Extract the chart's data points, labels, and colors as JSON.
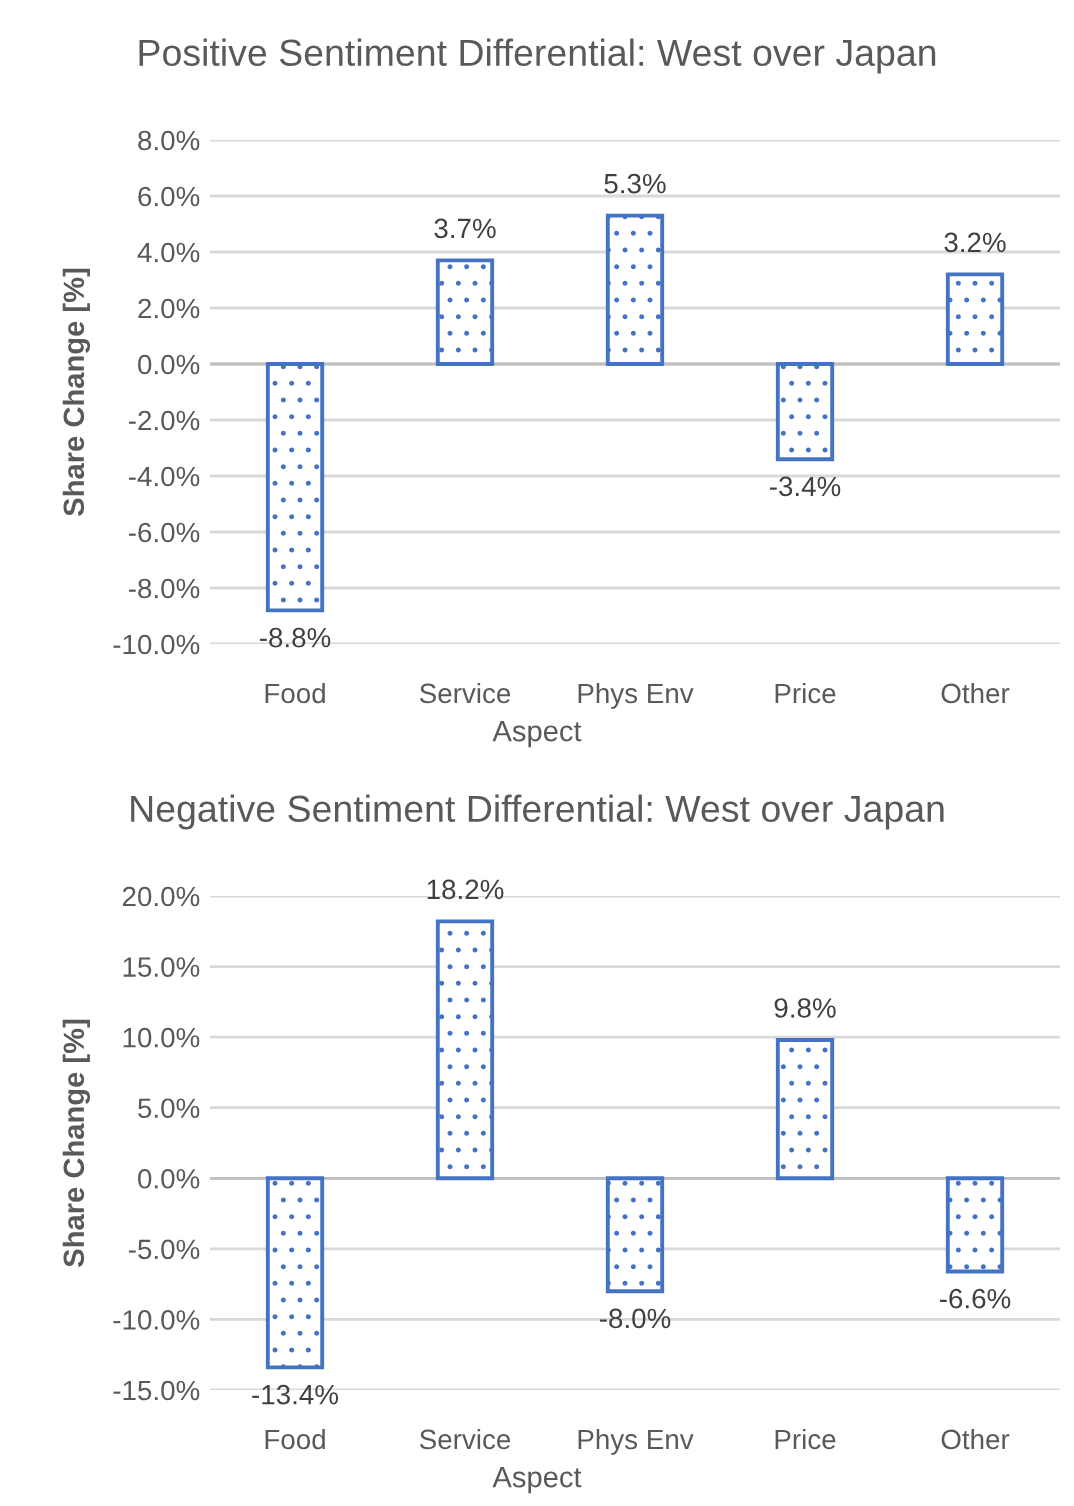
{
  "chart_data": [
    {
      "type": "bar",
      "title": "Positive Sentiment Differential: West over Japan",
      "xlabel": "Aspect",
      "ylabel": "Share Change [%]",
      "categories": [
        "Food",
        "Service",
        "Phys Env",
        "Price",
        "Other"
      ],
      "series": [
        {
          "color": "#4472c4",
          "values": [
            -8.8,
            3.7,
            5.3,
            -3.4,
            3.2
          ],
          "value_labels": [
            "-8.8%",
            "3.7%",
            "5.3%",
            "-3.4%",
            "3.2%"
          ]
        }
      ],
      "ylim": [
        -10,
        8
      ],
      "yticks": [
        {
          "value": -10,
          "label": "-10.0%"
        },
        {
          "value": -8,
          "label": "-8.0%"
        },
        {
          "value": -6,
          "label": "-6.0%"
        },
        {
          "value": -4,
          "label": "-4.0%"
        },
        {
          "value": -2,
          "label": "-2.0%"
        },
        {
          "value": 0,
          "label": "0.0%"
        },
        {
          "value": 2,
          "label": "2.0%"
        },
        {
          "value": 4,
          "label": "4.0%"
        },
        {
          "value": 6,
          "label": "6.0%"
        },
        {
          "value": 8,
          "label": "8.0%"
        }
      ],
      "grid": "y",
      "legend": false
    },
    {
      "type": "bar",
      "title": "Negative Sentiment Differential: West over Japan",
      "xlabel": "Aspect",
      "ylabel": "Share Change [%]",
      "categories": [
        "Food",
        "Service",
        "Phys Env",
        "Price",
        "Other"
      ],
      "series": [
        {
          "color": "#4472c4",
          "values": [
            -13.4,
            18.2,
            -8.0,
            9.8,
            -6.6
          ],
          "value_labels": [
            "-13.4%",
            "18.2%",
            "-8.0%",
            "9.8%",
            "-6.6%"
          ]
        }
      ],
      "ylim": [
        -15,
        20
      ],
      "yticks": [
        {
          "value": -15,
          "label": "-15.0%"
        },
        {
          "value": -10,
          "label": "-10.0%"
        },
        {
          "value": -5,
          "label": "-5.0%"
        },
        {
          "value": 0,
          "label": "0.0%"
        },
        {
          "value": 5,
          "label": "5.0%"
        },
        {
          "value": 10,
          "label": "10.0%"
        },
        {
          "value": 15,
          "label": "15.0%"
        },
        {
          "value": 20,
          "label": "20.0%"
        }
      ],
      "grid": "y",
      "legend": false
    }
  ]
}
